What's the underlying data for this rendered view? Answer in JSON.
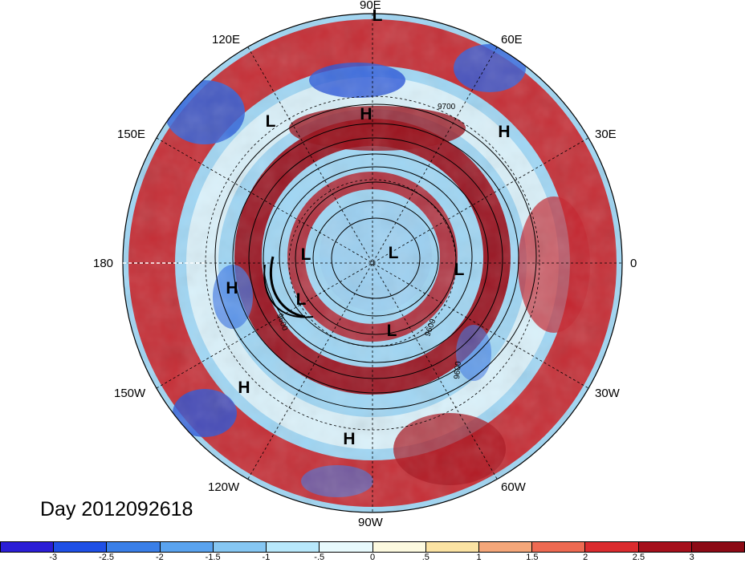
{
  "title": "Day 2012092618",
  "longitude_labels": [
    {
      "key": "90e",
      "text": "90E"
    },
    {
      "key": "60e",
      "text": "60E"
    },
    {
      "key": "30e",
      "text": "30E"
    },
    {
      "key": "0",
      "text": "0"
    },
    {
      "key": "30w",
      "text": "30W"
    },
    {
      "key": "60w",
      "text": "60W"
    },
    {
      "key": "90w",
      "text": "90W"
    },
    {
      "key": "120w",
      "text": "120W"
    },
    {
      "key": "150w",
      "text": "150W"
    },
    {
      "key": "180",
      "text": "180"
    },
    {
      "key": "150e",
      "text": "150E"
    },
    {
      "key": "120e",
      "text": "120E"
    }
  ],
  "pressure_markers": [
    "L",
    "H",
    "H",
    "L",
    "H",
    "L",
    "L",
    "L",
    "H",
    "L",
    "L",
    "H",
    "H"
  ],
  "contour_labels": [
    "9700",
    "9600",
    "9600",
    "9600"
  ],
  "colorbar": {
    "ticks": [
      "-3",
      "-2.5",
      "-2",
      "-1.5",
      "-1",
      "-.5",
      "0",
      ".5",
      "1",
      "1.5",
      "2",
      "2.5",
      "3"
    ],
    "colors": [
      "#2b1ed6",
      "#1f50e6",
      "#3a7fe8",
      "#5aa3ef",
      "#86c7f3",
      "#b8e8fb",
      "#e8fafd",
      "#fdfae0",
      "#fbe3a3",
      "#f5a77a",
      "#ee6a52",
      "#da2b2e",
      "#a50f1b",
      "#8c0a15"
    ]
  }
}
